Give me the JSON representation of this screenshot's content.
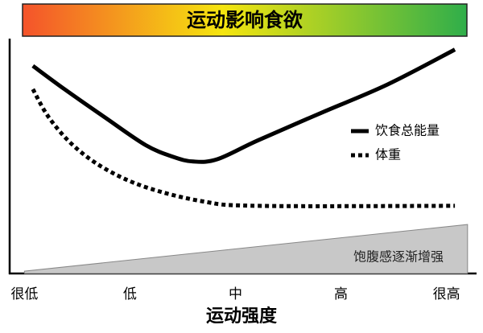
{
  "chart_data": {
    "type": "line",
    "title": "运动影响食欲",
    "x_label": "运动强度",
    "xlim": [
      -0.14,
      4.27
    ],
    "xticks": [
      {
        "value": 0,
        "label": "很低"
      },
      {
        "value": 1,
        "label": "低"
      },
      {
        "value": 2,
        "label": "中"
      },
      {
        "value": 3,
        "label": "高"
      },
      {
        "value": 4,
        "label": "很高"
      }
    ],
    "ylim": [
      0,
      100
    ],
    "legend": "right",
    "series": [
      {
        "name": "饮食总能量",
        "color": "#000000",
        "style": "solid",
        "x": [
          0.08,
          0.38,
          0.76,
          1.15,
          1.41,
          1.6,
          1.83,
          2.21,
          2.82,
          3.44,
          4.08
        ],
        "values": [
          89,
          79,
          67,
          55,
          50,
          48,
          49,
          57,
          69,
          81,
          96
        ]
      },
      {
        "name": "体重",
        "color": "#000000",
        "style": "dotted",
        "x": [
          0.08,
          0.23,
          0.46,
          0.76,
          1.15,
          1.68,
          2.21,
          4.08
        ],
        "values": [
          79,
          67,
          55,
          45,
          37,
          31,
          29,
          29
        ]
      },
      {
        "name": "饱腹感逐渐增强",
        "color": "#c8c8c8",
        "style": "area",
        "x": [
          0,
          4.2
        ],
        "values": [
          1,
          21
        ]
      }
    ]
  }
}
